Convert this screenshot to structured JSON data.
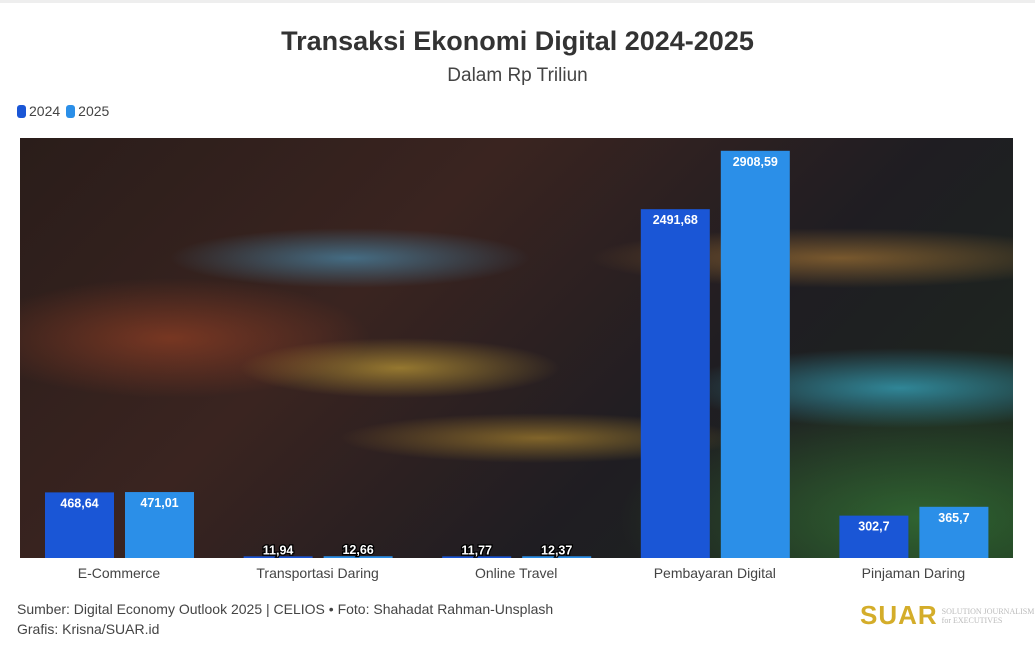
{
  "chart_data": {
    "type": "bar",
    "title": "Transaksi Ekonomi Digital 2024-2025",
    "subtitle": "Dalam Rp Triliun",
    "categories": [
      "E-Commerce",
      "Transportasi Daring",
      "Online Travel",
      "Pembayaran Digital",
      "Pinjaman Daring"
    ],
    "series": [
      {
        "name": "2024",
        "color": "#1a56d6",
        "values": [
          468.64,
          11.94,
          11.77,
          2491.68,
          302.7
        ],
        "labels": [
          "468,64",
          "11,94",
          "11,77",
          "2491,68",
          "302,7"
        ]
      },
      {
        "name": "2025",
        "color": "#2b8fe8",
        "values": [
          471.01,
          12.66,
          12.37,
          2908.59,
          365.7
        ],
        "labels": [
          "471,01",
          "12,66",
          "12,37",
          "2908,59",
          "365,7"
        ]
      }
    ],
    "ylim": [
      0,
      3000
    ],
    "legend": "top-left",
    "grid": false
  },
  "footer": {
    "source": "Sumber: Digital Economy Outlook 2025 | CELIOS • Foto: Shahadat Rahman-Unsplash",
    "credit": "Grafis: Krisna/SUAR.id"
  },
  "logo": {
    "name": "SUAR",
    "tagline1": "SOLUTION JOURNALISM",
    "tagline2": "for EXECUTIVES"
  }
}
